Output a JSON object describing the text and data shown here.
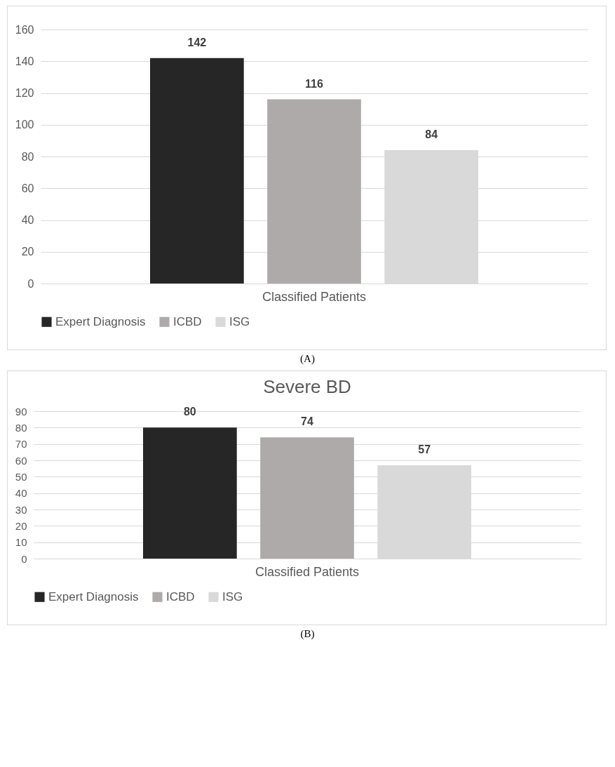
{
  "chart_data": [
    {
      "type": "bar",
      "categories": [
        "Classified Patients"
      ],
      "series": [
        {
          "name": "Expert Diagnosis",
          "color": "#262626",
          "values": [
            142
          ]
        },
        {
          "name": "ICBD",
          "color": "#aeaaaa",
          "values": [
            116
          ]
        },
        {
          "name": "ISG",
          "color": "#d9d9d9",
          "values": [
            84
          ]
        }
      ],
      "ylim": [
        0,
        160
      ],
      "yticks": [
        0,
        20,
        40,
        60,
        80,
        100,
        120,
        140,
        160
      ],
      "grid": "y",
      "legend": "bottom",
      "data_labels": true,
      "annotations": [
        "(A)"
      ]
    },
    {
      "type": "bar",
      "title": "Severe BD",
      "categories": [
        "Classified Patients"
      ],
      "series": [
        {
          "name": "Expert Diagnosis",
          "color": "#262626",
          "values": [
            80
          ]
        },
        {
          "name": "ICBD",
          "color": "#aeaaaa",
          "values": [
            74
          ]
        },
        {
          "name": "ISG",
          "color": "#d9d9d9",
          "values": [
            57
          ]
        }
      ],
      "ylim": [
        0,
        90
      ],
      "yticks": [
        0,
        10,
        20,
        30,
        40,
        50,
        60,
        70,
        80,
        90
      ],
      "grid": "y",
      "legend": "bottom",
      "data_labels": true,
      "annotations": [
        "(B)"
      ]
    }
  ]
}
